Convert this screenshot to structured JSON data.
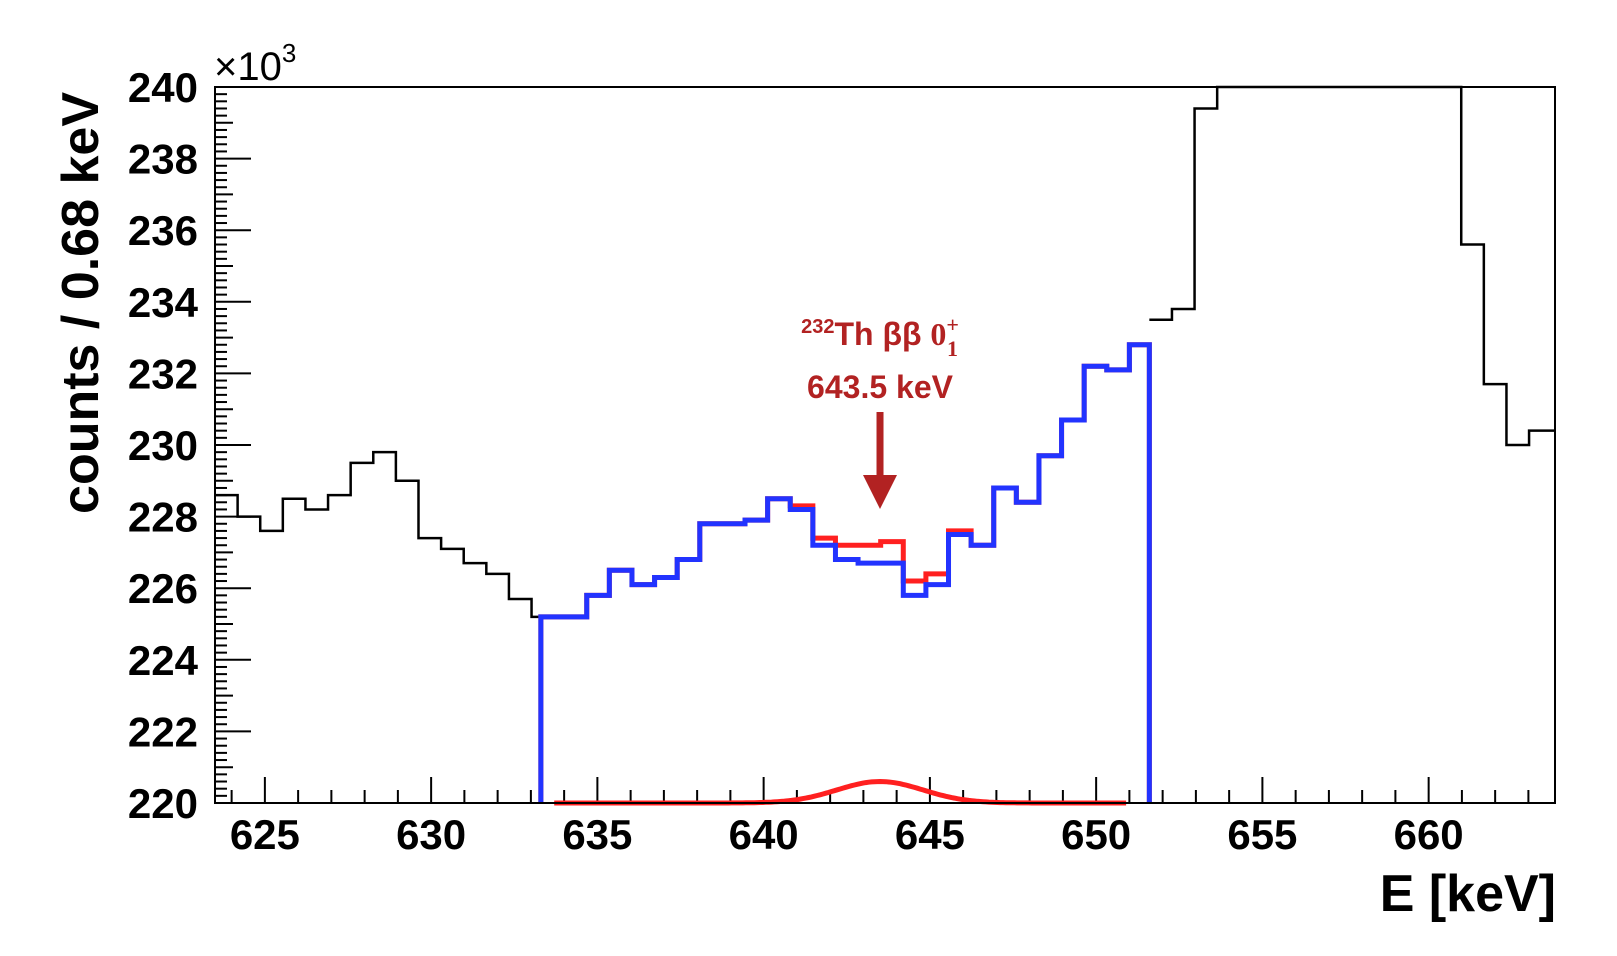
{
  "chart_data": {
    "type": "histogram",
    "xlabel": "E [keV]",
    "ylabel": "counts / 0.68 keV",
    "y_multiplier": "×10",
    "y_multiplier_exp": "3",
    "xlim": [
      623.5,
      663.8
    ],
    "ylim": [
      220,
      240
    ],
    "x_tick_labels": [
      "625",
      "630",
      "635",
      "640",
      "645",
      "650",
      "655",
      "660"
    ],
    "y_tick_labels": [
      "220",
      "222",
      "224",
      "226",
      "228",
      "230",
      "232",
      "234",
      "236",
      "238",
      "240"
    ],
    "bin_width": 0.68,
    "grid": false,
    "series": [
      {
        "color": "#000000",
        "bin_edges": [
          623.5,
          624.18,
          624.86,
          625.54,
          626.22,
          626.9,
          627.58,
          628.26,
          628.94,
          629.62,
          630.3,
          630.98,
          631.66,
          632.34,
          633.02,
          633.7,
          651.6,
          652.28,
          652.96,
          653.64,
          660.98,
          661.66,
          662.34,
          663.02,
          663.8
        ],
        "values": [
          228.6,
          228.0,
          227.6,
          228.5,
          228.2,
          228.6,
          229.5,
          229.8,
          229.0,
          227.4,
          227.1,
          226.7,
          226.4,
          225.7,
          225.2,
          null,
          233.5,
          233.8,
          239.4,
          240.0,
          235.6,
          231.7,
          230.0,
          230.4
        ]
      },
      {
        "color": "#ff2020",
        "bin_edges": [
          633.3,
          634.0,
          634.68,
          635.36,
          636.04,
          636.72,
          637.4,
          638.08,
          638.76,
          639.44,
          640.12,
          640.8,
          641.48,
          642.16,
          642.84,
          643.52,
          644.2,
          644.88,
          645.56,
          646.24,
          646.92,
          647.6,
          648.28,
          648.96,
          649.64,
          650.32,
          651.0,
          651.6
        ],
        "values": [
          225.2,
          225.2,
          225.8,
          226.5,
          226.1,
          226.3,
          226.8,
          227.8,
          227.8,
          227.9,
          228.5,
          228.3,
          227.4,
          227.2,
          227.2,
          227.3,
          226.2,
          226.4,
          227.6,
          227.2,
          228.8,
          228.4,
          229.7,
          230.7,
          232.2,
          232.1,
          232.8
        ]
      },
      {
        "color": "#2233ff",
        "bin_edges": [
          633.3,
          634.0,
          634.68,
          635.36,
          636.04,
          636.72,
          637.4,
          638.08,
          638.76,
          639.44,
          640.12,
          640.8,
          641.48,
          642.16,
          642.84,
          643.52,
          644.2,
          644.88,
          645.56,
          646.24,
          646.92,
          647.6,
          648.28,
          648.96,
          649.64,
          650.32,
          651.0,
          651.6
        ],
        "values": [
          225.2,
          225.2,
          225.8,
          226.5,
          226.1,
          226.3,
          226.8,
          227.8,
          227.8,
          227.9,
          228.5,
          228.2,
          227.2,
          226.8,
          226.7,
          226.7,
          225.8,
          226.1,
          227.5,
          227.2,
          228.8,
          228.4,
          229.7,
          230.7,
          232.2,
          232.1,
          232.8
        ]
      },
      {
        "color": "#ff2020",
        "type": "gaussian",
        "x_range": [
          633.7,
          650.9
        ],
        "baseline": 220,
        "mean": 643.5,
        "amplitude": 0.6,
        "sigma": 1.3
      }
    ],
    "annotation": {
      "isotope_mass": "232",
      "line1_main": "Th ββ ",
      "state_label": "0",
      "state_sup": "+",
      "state_sub": "1",
      "line2": "643.5 keV",
      "arrow_x": 643.5,
      "color": "#b22222"
    }
  }
}
